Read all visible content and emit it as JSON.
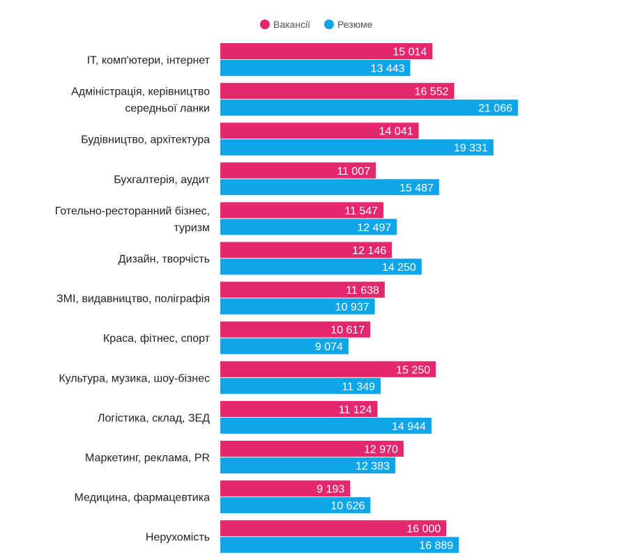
{
  "chart_data": {
    "type": "bar",
    "orientation": "horizontal",
    "legend_position": "top-center",
    "grid": false,
    "xlim": [
      0,
      21066
    ],
    "categories": [
      "IT, комп'ютери, інтернет",
      "Адміністрація, керівництво середньої ланки",
      "Будівництво, архітектура",
      "Бухгалтерія, аудит",
      "Готельно-ресторанний бізнес, туризм",
      "Дизайн, творчість",
      "ЗМІ, видавництво, поліграфія",
      "Краса, фітнес, спорт",
      "Культура, музика, шоу-бізнес",
      "Логістика, склад, ЗЕД",
      "Маркетинг, реклама, PR",
      "Медицина, фармацевтика",
      "Нерухомість"
    ],
    "category_lines": [
      [
        "IT, комп'ютери, інтернет"
      ],
      [
        "Адміністрація, керівництво",
        "середньої ланки"
      ],
      [
        "Будівництво, архітектура"
      ],
      [
        "Бухгалтерія, аудит"
      ],
      [
        "Готельно-ресторанний бізнес,",
        "туризм"
      ],
      [
        "Дизайн, творчість"
      ],
      [
        "ЗМІ, видавництво, поліграфія"
      ],
      [
        "Краса, фітнес, спорт"
      ],
      [
        "Культура, музика, шоу-бізнес"
      ],
      [
        "Логістика, склад, ЗЕД"
      ],
      [
        "Маркетинг, реклама, PR"
      ],
      [
        "Медицина, фармацевтика"
      ],
      [
        "Нерухомість"
      ]
    ],
    "series": [
      {
        "name": "Вакансії",
        "color": "#e5286b",
        "values": [
          15014,
          16552,
          14041,
          11007,
          11547,
          12146,
          11638,
          10617,
          15250,
          11124,
          12970,
          9193,
          16000
        ],
        "labels": [
          "15 014",
          "16 552",
          "14 041",
          "11 007",
          "11 547",
          "12 146",
          "11 638",
          "10 617",
          "15 250",
          "11 124",
          "12 970",
          "9 193",
          "16 000"
        ]
      },
      {
        "name": "Резюме",
        "color": "#0ea5e9",
        "values": [
          13443,
          21066,
          19331,
          15487,
          12497,
          14250,
          10937,
          9074,
          11349,
          14944,
          12383,
          10626,
          16889
        ],
        "labels": [
          "13 443",
          "21 066",
          "19 331",
          "15 487",
          "12 497",
          "14 250",
          "10 937",
          "9 074",
          "11 349",
          "14 944",
          "12 383",
          "10 626",
          "16 889"
        ]
      }
    ]
  }
}
